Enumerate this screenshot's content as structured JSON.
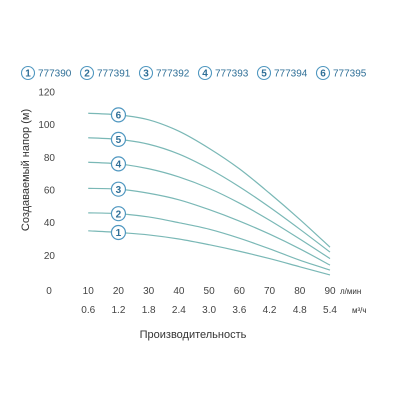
{
  "chart_data": {
    "type": "line",
    "title": "",
    "ylabel": "Создаваемый напор (м)",
    "xlabel": "Производительность",
    "x_unit": "л/мин",
    "x2_unit": "м³/ч",
    "x_ticks": [
      "0",
      "10",
      "20",
      "30",
      "40",
      "50",
      "60",
      "70",
      "80",
      "90"
    ],
    "x2_ticks": [
      "0.6",
      "1.2",
      "1.8",
      "2.4",
      "3.0",
      "3.6",
      "4.2",
      "4.8",
      "5.4"
    ],
    "y_ticks": [
      "20",
      "40",
      "60",
      "80",
      "100",
      "120"
    ],
    "xlim": [
      0,
      90
    ],
    "ylim": [
      0,
      120
    ],
    "legend": [
      {
        "num": "1",
        "label": "777390"
      },
      {
        "num": "2",
        "label": "777391"
      },
      {
        "num": "3",
        "label": "777392"
      },
      {
        "num": "4",
        "label": "777393"
      },
      {
        "num": "5",
        "label": "777394"
      },
      {
        "num": "6",
        "label": "777395"
      }
    ],
    "series": [
      {
        "marker": "1",
        "x": [
          10,
          20,
          30,
          40,
          50,
          60,
          70,
          80,
          90
        ],
        "y": [
          35,
          34,
          32.5,
          30,
          26.5,
          22.5,
          18,
          13,
          8
        ]
      },
      {
        "marker": "2",
        "x": [
          10,
          20,
          30,
          40,
          50,
          60,
          70,
          80,
          90
        ],
        "y": [
          46,
          45.5,
          43.5,
          40,
          36,
          30.5,
          24,
          17,
          11
        ]
      },
      {
        "marker": "3",
        "x": [
          10,
          20,
          30,
          40,
          50,
          60,
          70,
          80,
          90
        ],
        "y": [
          61,
          60.5,
          58,
          54,
          48,
          41,
          33,
          24,
          14
        ]
      },
      {
        "marker": "4",
        "x": [
          10,
          20,
          30,
          40,
          50,
          60,
          70,
          80,
          90
        ],
        "y": [
          77,
          76,
          73,
          68,
          61,
          52,
          41.5,
          30,
          18
        ]
      },
      {
        "marker": "5",
        "x": [
          10,
          20,
          30,
          40,
          50,
          60,
          70,
          80,
          90
        ],
        "y": [
          92,
          91,
          88,
          82,
          73,
          62,
          49.5,
          36,
          22
        ]
      },
      {
        "marker": "6",
        "x": [
          10,
          20,
          30,
          40,
          50,
          60,
          70,
          80,
          90
        ],
        "y": [
          107,
          106,
          103,
          96,
          85.5,
          73,
          58,
          42,
          25
        ]
      }
    ]
  }
}
